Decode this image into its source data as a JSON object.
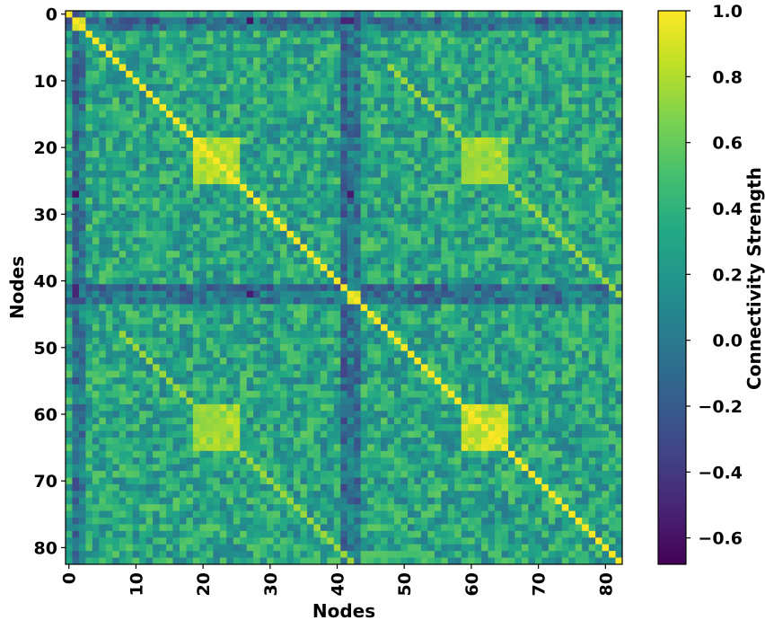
{
  "chart_data": {
    "type": "heatmap",
    "title": "",
    "xlabel": "Nodes",
    "ylabel": "Nodes",
    "colorbar_label": "Connectivity Strength",
    "n_nodes": 83,
    "x_ticks": [
      0,
      10,
      20,
      30,
      40,
      50,
      60,
      70,
      80
    ],
    "y_ticks": [
      0,
      10,
      20,
      30,
      40,
      50,
      60,
      70,
      80
    ],
    "x_tick_labels": [
      "0",
      "10",
      "20",
      "30",
      "40",
      "50",
      "60",
      "70",
      "80"
    ],
    "y_tick_labels": [
      "0",
      "10",
      "20",
      "30",
      "40",
      "50",
      "60",
      "70",
      "80"
    ],
    "colorbar_ticks": [
      1.0,
      0.8,
      0.6,
      0.4,
      0.2,
      0.0,
      -0.2,
      -0.4,
      -0.6
    ],
    "colorbar_tick_labels": [
      "1.0",
      "0.8",
      "0.6",
      "0.4",
      "0.2",
      "0.0",
      "−0.2",
      "−0.4",
      "−0.6"
    ],
    "vmin": -0.68,
    "vmax": 1.0,
    "colormap": "viridis",
    "diagonal_value": 1.0,
    "background_mean": 0.3,
    "background_spread": 0.18,
    "off_diagonal_bands": [
      {
        "from_row": 8,
        "to_row": 41,
        "col_offset": 40,
        "value": 0.75
      },
      {
        "from_row": 48,
        "to_row": 82,
        "col_offset": -40,
        "value": 0.75
      }
    ],
    "strong_blocks": [
      {
        "rows": [
          19,
          25
        ],
        "cols": [
          19,
          25
        ],
        "value": 0.78
      },
      {
        "rows": [
          19,
          25
        ],
        "cols": [
          59,
          65
        ],
        "value": 0.72
      },
      {
        "rows": [
          59,
          65
        ],
        "cols": [
          19,
          25
        ],
        "value": 0.72
      },
      {
        "rows": [
          59,
          65
        ],
        "cols": [
          59,
          65
        ],
        "value": 0.82
      }
    ],
    "weak_lines": [
      {
        "index": 1,
        "value": -0.1
      },
      {
        "index": 2,
        "value": 0.0
      },
      {
        "index": 41,
        "value": -0.1
      },
      {
        "index": 42,
        "value": 0.0
      },
      {
        "index": 43,
        "value": -0.05
      }
    ],
    "minimum_cells": [
      {
        "row": 27,
        "col": 1,
        "value": -0.6
      },
      {
        "row": 27,
        "col": 42,
        "value": -0.55
      },
      {
        "row": 1,
        "col": 41,
        "value": -0.5
      },
      {
        "row": 42,
        "col": 1,
        "value": -0.5
      },
      {
        "row": 1,
        "col": 2,
        "value": 0.9
      },
      {
        "row": 42,
        "col": 43,
        "value": 0.9
      }
    ]
  }
}
